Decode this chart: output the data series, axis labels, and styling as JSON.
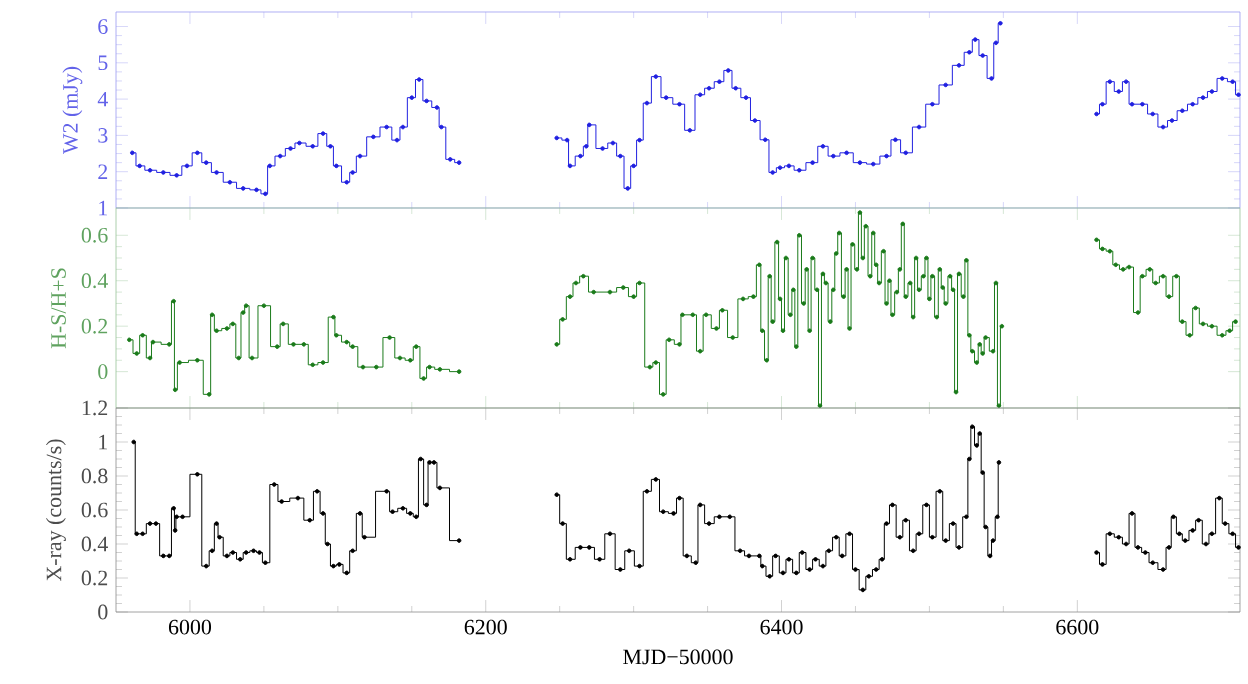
{
  "chart_data": [
    {
      "type": "step",
      "ylabel": "W2 (mJy)",
      "color": "#2020e0",
      "marker": "circle",
      "tick_labels": "y",
      "xlim": [
        5950,
        6710
      ],
      "ylim": [
        1,
        6.4
      ],
      "xticks": [
        6000,
        6200,
        6400,
        6600
      ],
      "yticks": [
        1,
        2,
        3,
        4,
        5,
        6
      ],
      "x": [
        5961,
        5966,
        5973,
        5982,
        5991,
        5998,
        6005,
        6011,
        6018,
        6027,
        6036,
        6045,
        6051,
        6054,
        6061,
        6068,
        6074,
        6083,
        6090,
        6095,
        6099,
        6106,
        6110,
        6115,
        6124,
        6133,
        6140,
        6144,
        6150,
        6155,
        6160,
        6167,
        6170,
        6176,
        6182,
        6215,
        6248,
        6255,
        6257,
        6264,
        6268,
        6270,
        6279,
        6286,
        6291,
        6296,
        6300,
        6304,
        6309,
        6315,
        6322,
        6331,
        6338,
        6345,
        6351,
        6358,
        6364,
        6369,
        6376,
        6382,
        6389,
        6394,
        6399,
        6405,
        6412,
        6421,
        6428,
        6435,
        6444,
        6453,
        6462,
        6471,
        6477,
        6484,
        6493,
        6502,
        6511,
        6520,
        6527,
        6531,
        6536,
        6542,
        6545,
        6548,
        6580,
        6613,
        6617,
        6622,
        6628,
        6633,
        6637,
        6644,
        6651,
        6658,
        6664,
        6671,
        6678,
        6685,
        6691,
        6698,
        6705,
        6709
      ],
      "values": [
        2.52,
        2.16,
        2.04,
        1.98,
        1.9,
        2.16,
        2.52,
        2.25,
        1.98,
        1.71,
        1.54,
        1.5,
        1.39,
        2.16,
        2.43,
        2.64,
        2.79,
        2.7,
        3.05,
        2.7,
        2.16,
        1.71,
        1.98,
        2.43,
        2.96,
        3.23,
        2.87,
        3.23,
        4.04,
        4.54,
        3.95,
        3.77,
        3.23,
        2.34,
        2.25,
        null,
        2.93,
        2.87,
        2.16,
        2.43,
        2.7,
        3.29,
        2.64,
        2.79,
        2.43,
        1.54,
        2.16,
        2.87,
        3.89,
        4.62,
        4.04,
        3.86,
        3.14,
        4.12,
        4.3,
        4.48,
        4.79,
        4.3,
        4.04,
        3.41,
        2.88,
        1.98,
        2.11,
        2.16,
        2.04,
        2.25,
        2.7,
        2.43,
        2.52,
        2.25,
        2.21,
        2.43,
        2.88,
        2.52,
        3.23,
        3.86,
        4.39,
        4.93,
        5.29,
        5.64,
        5.2,
        4.57,
        5.55,
        6.09,
        null,
        3.59,
        3.86,
        4.48,
        4.21,
        4.48,
        3.86,
        3.86,
        3.59,
        3.23,
        3.41,
        3.68,
        3.86,
        4.04,
        4.21,
        4.57,
        4.48,
        4.12
      ]
    },
    {
      "type": "step",
      "ylabel": "H-S/H+S",
      "color": "#1a7a1a",
      "marker": "circle",
      "tick_labels": "y",
      "xlim": [
        5950,
        6710
      ],
      "ylim": [
        -0.16,
        0.72
      ],
      "xticks": [
        6000,
        6200,
        6400,
        6600
      ],
      "yticks": [
        0,
        0.2,
        0.4,
        0.6
      ],
      "x": [
        5959,
        5964,
        5968,
        5973,
        5975,
        5986,
        5989,
        5990,
        5993,
        6005,
        6013,
        6015,
        6018,
        6025,
        6029,
        6033,
        6036,
        6038,
        6042,
        6050,
        6059,
        6063,
        6070,
        6077,
        6083,
        6090,
        6097,
        6099,
        6106,
        6110,
        6117,
        6126,
        6135,
        6142,
        6149,
        6153,
        6158,
        6162,
        6169,
        6182,
        6215,
        6248,
        6252,
        6257,
        6261,
        6266,
        6273,
        6284,
        6293,
        6300,
        6304,
        6311,
        6315,
        6320,
        6324,
        6331,
        6333,
        6340,
        6345,
        6349,
        6356,
        6360,
        6367,
        6374,
        6381,
        6385,
        6387,
        6390,
        6392,
        6394,
        6397,
        6399,
        6401,
        6403,
        6406,
        6408,
        6410,
        6412,
        6415,
        6417,
        6419,
        6421,
        6424,
        6426,
        6428,
        6430,
        6433,
        6435,
        6437,
        6439,
        6442,
        6444,
        6446,
        6448,
        6451,
        6453,
        6455,
        6457,
        6460,
        6462,
        6464,
        6466,
        6469,
        6471,
        6473,
        6475,
        6478,
        6480,
        6482,
        6484,
        6487,
        6489,
        6491,
        6493,
        6496,
        6498,
        6500,
        6502,
        6505,
        6507,
        6509,
        6511,
        6514,
        6516,
        6518,
        6520,
        6523,
        6525,
        6527,
        6529,
        6532,
        6534,
        6536,
        6538,
        6543,
        6545,
        6547,
        6549,
        6580,
        6613,
        6617,
        6622,
        6626,
        6631,
        6635,
        6641,
        6644,
        6649,
        6653,
        6658,
        6662,
        6667,
        6671,
        6676,
        6680,
        6685,
        6691,
        6698,
        6703,
        6707
      ],
      "values": [
        0.14,
        0.08,
        0.16,
        0.06,
        0.13,
        0.12,
        0.31,
        -0.08,
        0.04,
        0.05,
        -0.1,
        0.25,
        0.18,
        0.19,
        0.21,
        0.06,
        0.26,
        0.29,
        0.06,
        0.29,
        0.11,
        0.21,
        0.12,
        0.12,
        0.03,
        0.04,
        0.24,
        0.16,
        0.13,
        0.11,
        0.02,
        0.02,
        0.15,
        0.06,
        0.05,
        0.11,
        -0.03,
        0.02,
        0.01,
        0.0,
        null,
        0.12,
        0.23,
        0.33,
        0.39,
        0.42,
        0.35,
        0.35,
        0.37,
        0.33,
        0.39,
        0.02,
        0.04,
        -0.1,
        0.14,
        0.12,
        0.25,
        0.25,
        0.09,
        0.25,
        0.19,
        0.27,
        0.15,
        0.32,
        0.33,
        0.47,
        0.18,
        0.05,
        0.42,
        0.22,
        0.57,
        0.32,
        0.18,
        0.5,
        0.25,
        0.36,
        0.11,
        0.6,
        0.3,
        0.45,
        0.18,
        0.5,
        0.36,
        -0.15,
        0.43,
        0.39,
        0.22,
        0.36,
        0.52,
        0.61,
        0.33,
        0.45,
        0.19,
        0.56,
        0.45,
        0.7,
        0.5,
        0.64,
        0.42,
        0.61,
        0.47,
        0.39,
        0.53,
        0.3,
        0.4,
        0.25,
        0.35,
        0.45,
        0.65,
        0.33,
        0.39,
        0.24,
        0.5,
        0.36,
        0.42,
        0.5,
        0.32,
        0.42,
        0.24,
        0.45,
        0.37,
        0.3,
        0.42,
        0.36,
        -0.09,
        0.43,
        0.33,
        0.49,
        0.16,
        0.09,
        0.04,
        0.12,
        0.08,
        0.15,
        0.09,
        0.39,
        -0.15,
        0.2,
        null,
        0.58,
        0.54,
        0.53,
        0.47,
        0.45,
        0.46,
        0.26,
        0.42,
        0.45,
        0.39,
        0.42,
        0.33,
        0.42,
        0.22,
        0.16,
        0.28,
        0.21,
        0.2,
        0.16,
        0.18,
        0.22
      ]
    },
    {
      "type": "step",
      "ylabel": "X-ray (counts/s)",
      "xlabel": "MJD−50000",
      "color": "#000000",
      "marker": "circle",
      "xlim": [
        5950,
        6710
      ],
      "ylim": [
        0,
        1.2
      ],
      "xticks": [
        6000,
        6200,
        6400,
        6600
      ],
      "yticks": [
        0,
        0.2,
        0.4,
        0.6,
        0.8,
        1,
        1.2
      ],
      "x": [
        5962,
        5964,
        5968,
        5973,
        5977,
        5982,
        5986,
        5989,
        5990,
        5991,
        5995,
        6005,
        6011,
        6015,
        6018,
        6020,
        6025,
        6029,
        6034,
        6038,
        6043,
        6047,
        6051,
        6057,
        6062,
        6073,
        6081,
        6086,
        6090,
        6093,
        6097,
        6101,
        6106,
        6110,
        6115,
        6118,
        6133,
        6137,
        6144,
        6149,
        6153,
        6156,
        6160,
        6162,
        6165,
        6169,
        6182,
        6215,
        6248,
        6252,
        6257,
        6264,
        6270,
        6277,
        6284,
        6291,
        6297,
        6304,
        6309,
        6315,
        6320,
        6327,
        6331,
        6336,
        6342,
        6345,
        6351,
        6358,
        6365,
        6372,
        6378,
        6385,
        6387,
        6392,
        6396,
        6401,
        6405,
        6410,
        6414,
        6419,
        6423,
        6428,
        6432,
        6437,
        6441,
        6446,
        6450,
        6455,
        6459,
        6464,
        6468,
        6471,
        6475,
        6480,
        6484,
        6489,
        6493,
        6498,
        6502,
        6507,
        6511,
        6516,
        6520,
        6525,
        6527,
        6529,
        6532,
        6534,
        6536,
        6538,
        6541,
        6543,
        6546,
        6547,
        6580,
        6613,
        6617,
        6622,
        6628,
        6633,
        6637,
        6641,
        6646,
        6651,
        6658,
        6662,
        6665,
        6669,
        6673,
        6678,
        6682,
        6687,
        6691,
        6696,
        6700,
        6705,
        6709
      ],
      "values": [
        1.0,
        0.46,
        0.46,
        0.52,
        0.52,
        0.33,
        0.33,
        0.61,
        0.48,
        0.56,
        0.56,
        0.81,
        0.27,
        0.36,
        0.52,
        0.44,
        0.33,
        0.35,
        0.31,
        0.35,
        0.36,
        0.35,
        0.29,
        0.75,
        0.65,
        0.67,
        0.54,
        0.71,
        0.58,
        0.4,
        0.27,
        0.28,
        0.23,
        0.36,
        0.58,
        0.44,
        0.71,
        0.59,
        0.61,
        0.58,
        0.56,
        0.9,
        0.63,
        0.88,
        0.88,
        0.73,
        0.42,
        null,
        0.69,
        0.52,
        0.31,
        0.38,
        0.38,
        0.31,
        0.46,
        0.25,
        0.36,
        0.27,
        0.71,
        0.78,
        0.59,
        0.58,
        0.67,
        0.33,
        0.29,
        0.63,
        0.52,
        0.56,
        0.56,
        0.36,
        0.33,
        0.33,
        0.27,
        0.21,
        0.33,
        0.23,
        0.31,
        0.23,
        0.35,
        0.25,
        0.31,
        0.27,
        0.36,
        0.44,
        0.33,
        0.46,
        0.25,
        0.13,
        0.21,
        0.25,
        0.31,
        0.52,
        0.63,
        0.44,
        0.54,
        0.36,
        0.46,
        0.63,
        0.44,
        0.71,
        0.42,
        0.52,
        0.38,
        0.56,
        0.9,
        1.09,
        0.98,
        1.05,
        0.82,
        0.5,
        0.33,
        0.42,
        0.56,
        0.88,
        null,
        0.35,
        0.28,
        0.46,
        0.44,
        0.4,
        0.58,
        0.38,
        0.35,
        0.29,
        0.25,
        0.38,
        0.56,
        0.46,
        0.42,
        0.48,
        0.54,
        0.4,
        0.46,
        0.67,
        0.52,
        0.46,
        0.38
      ]
    }
  ]
}
